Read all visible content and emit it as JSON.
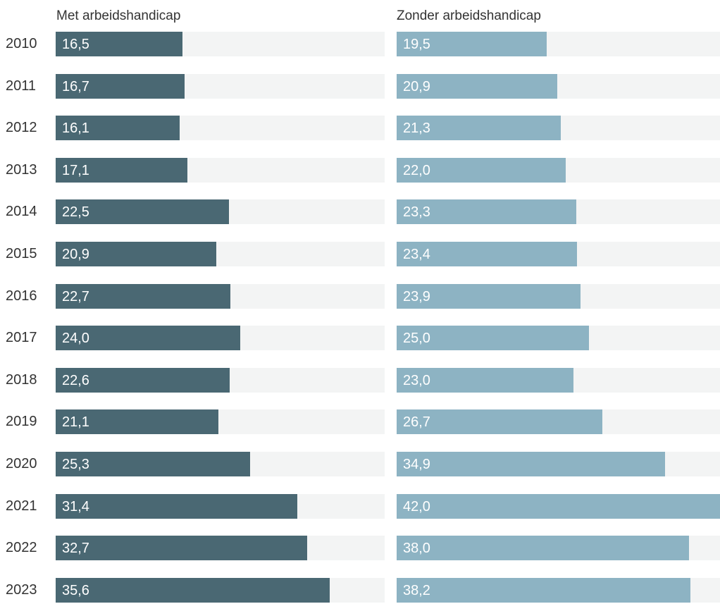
{
  "chart_data": {
    "type": "bar",
    "orientation": "horizontal",
    "categories": [
      "2010",
      "2011",
      "2012",
      "2013",
      "2014",
      "2015",
      "2016",
      "2017",
      "2018",
      "2019",
      "2020",
      "2021",
      "2022",
      "2023"
    ],
    "series": [
      {
        "name": "Met arbeidshandicap",
        "color": "#4a6873",
        "values": [
          16.5,
          16.7,
          16.1,
          17.1,
          22.5,
          20.9,
          22.7,
          24.0,
          22.6,
          21.1,
          25.3,
          31.4,
          32.7,
          35.6
        ],
        "labels": [
          "16,5",
          "16,7",
          "16,1",
          "17,1",
          "22,5",
          "20,9",
          "22,7",
          "24,0",
          "22,6",
          "21,1",
          "25,3",
          "31,4",
          "32,7",
          "35,6"
        ]
      },
      {
        "name": "Zonder arbeidshandicap",
        "color": "#8db3c3",
        "values": [
          19.5,
          20.9,
          21.3,
          22.0,
          23.3,
          23.4,
          23.9,
          25.0,
          23.0,
          26.7,
          34.9,
          42.0,
          38.0,
          38.2
        ],
        "labels": [
          "19,5",
          "20,9",
          "21,3",
          "22,0",
          "23,3",
          "23,4",
          "23,9",
          "25,0",
          "23,0",
          "26,7",
          "34,9",
          "42,0",
          "38,0",
          "38,2"
        ]
      }
    ],
    "xlim": [
      0,
      42
    ],
    "grid": false,
    "legend": "none"
  }
}
